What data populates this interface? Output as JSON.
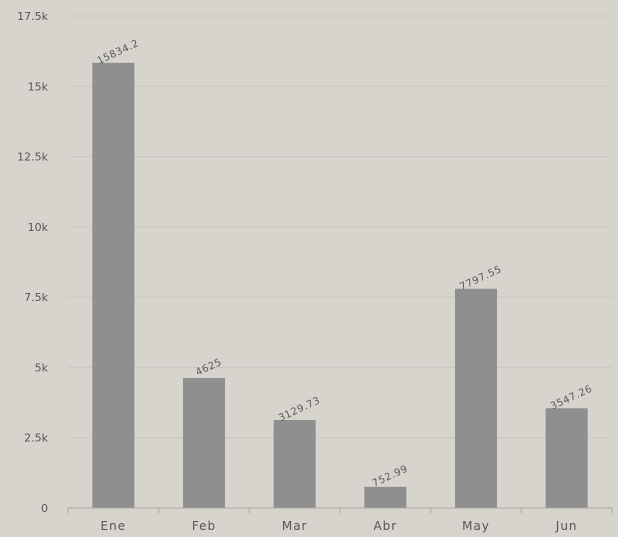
{
  "chart_data": {
    "type": "bar",
    "title": "",
    "xlabel": "",
    "ylabel": "",
    "categories": [
      "Ene",
      "Feb",
      "Mar",
      "Abr",
      "May",
      "Jun"
    ],
    "values": [
      15834.2,
      4625,
      3129.73,
      752.99,
      7797.55,
      3547.26
    ],
    "data_labels": [
      "15834.2",
      "4625",
      "3129.73",
      "752.99",
      "7797.55",
      "3547.26"
    ],
    "ylim": [
      0,
      17500
    ],
    "yticks": [
      0,
      2500,
      5000,
      7500,
      10000,
      12500,
      15000,
      17500
    ],
    "ytick_labels": [
      "0",
      "2.5k",
      "5k",
      "7.5k",
      "10k",
      "12.5k",
      "15k",
      "17.5k"
    ],
    "grid": true,
    "colors": {
      "background": "#d6d4cd",
      "bar": "#8f8f8f",
      "grid": "#c9c7c0"
    }
  }
}
